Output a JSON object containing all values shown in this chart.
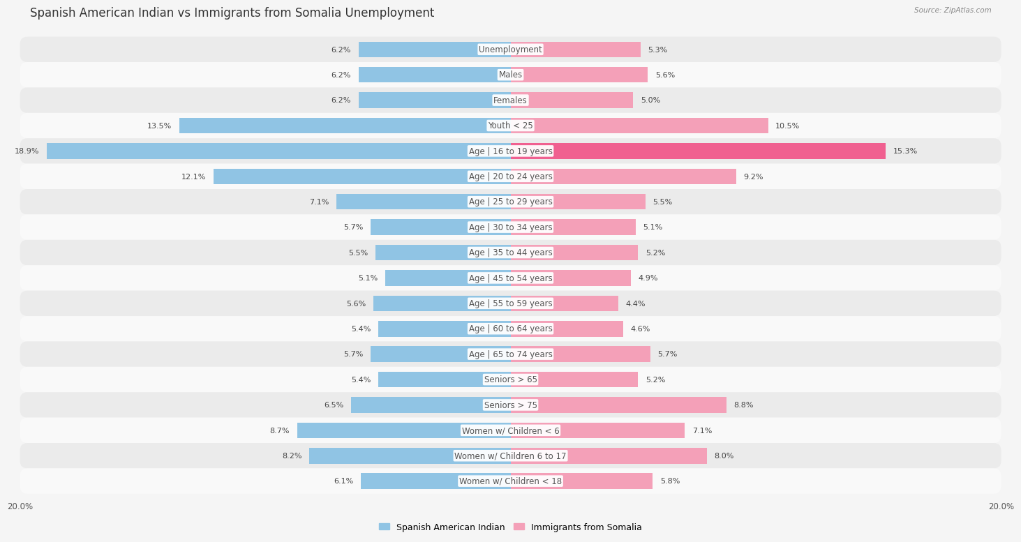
{
  "title": "Spanish American Indian vs Immigrants from Somalia Unemployment",
  "source": "Source: ZipAtlas.com",
  "categories": [
    "Unemployment",
    "Males",
    "Females",
    "Youth < 25",
    "Age | 16 to 19 years",
    "Age | 20 to 24 years",
    "Age | 25 to 29 years",
    "Age | 30 to 34 years",
    "Age | 35 to 44 years",
    "Age | 45 to 54 years",
    "Age | 55 to 59 years",
    "Age | 60 to 64 years",
    "Age | 65 to 74 years",
    "Seniors > 65",
    "Seniors > 75",
    "Women w/ Children < 6",
    "Women w/ Children 6 to 17",
    "Women w/ Children < 18"
  ],
  "left_values": [
    6.2,
    6.2,
    6.2,
    13.5,
    18.9,
    12.1,
    7.1,
    5.7,
    5.5,
    5.1,
    5.6,
    5.4,
    5.7,
    5.4,
    6.5,
    8.7,
    8.2,
    6.1
  ],
  "right_values": [
    5.3,
    5.6,
    5.0,
    10.5,
    15.3,
    9.2,
    5.5,
    5.1,
    5.2,
    4.9,
    4.4,
    4.6,
    5.7,
    5.2,
    8.8,
    7.1,
    8.0,
    5.8
  ],
  "left_color": "#90c4e4",
  "right_color": "#f4a0b8",
  "right_color_highlight": "#f06090",
  "left_label": "Spanish American Indian",
  "right_label": "Immigrants from Somalia",
  "axis_max": 20.0,
  "background_color": "#f5f5f5",
  "row_bg_odd": "#ebebeb",
  "row_bg_even": "#f9f9f9",
  "title_fontsize": 12,
  "label_fontsize": 8.5,
  "value_fontsize": 8.0,
  "tick_fontsize": 8.5
}
